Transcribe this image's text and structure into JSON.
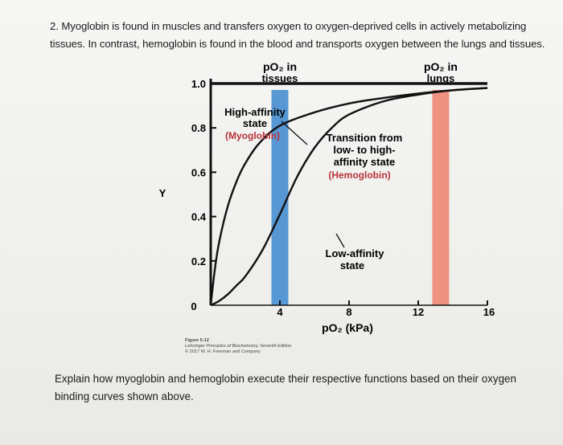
{
  "question": {
    "number": "2.",
    "text": "Myoglobin is found in muscles and transfers oxygen to oxygen-deprived cells in actively metabolizing tissues. In contrast, hemoglobin is found in the blood and transports oxygen between the lungs and tissues.",
    "prompt": "Explain how myoglobin and hemoglobin execute their respective functions based on their oxygen binding curves shown above."
  },
  "figure_credit": {
    "figure": "Figure 5-12",
    "book": "Lehninger Principles of Biochemistry,",
    "edition": "Seventh Edition",
    "copyright": "© 2017 W. H. Freeman and Company"
  },
  "chart_data": {
    "type": "line",
    "xlabel": "pO₂ (kPa)",
    "ylabel": "Y",
    "xlim": [
      0,
      16
    ],
    "ylim": [
      0,
      1.0
    ],
    "x_ticks": [
      4,
      8,
      12,
      16
    ],
    "y_ticks": [
      0.2,
      0.4,
      0.6,
      0.8,
      1.0
    ],
    "origin_label": "0",
    "bands": [
      {
        "label_line1": "pO₂ in",
        "label_line2": "tissues",
        "x_center": 4,
        "color": "#4a8fd0"
      },
      {
        "label_line1": "pO₂ in",
        "label_line2": "lungs",
        "x_center": 13.3,
        "color": "#ef8a78"
      }
    ],
    "series": [
      {
        "name": "Myoglobin",
        "x": [
          0,
          0.25,
          0.5,
          1,
          1.5,
          2,
          2.8,
          4,
          6,
          8,
          10,
          12,
          14,
          16
        ],
        "y": [
          0,
          0.17,
          0.29,
          0.45,
          0.56,
          0.64,
          0.73,
          0.81,
          0.87,
          0.91,
          0.935,
          0.955,
          0.97,
          0.98
        ]
      },
      {
        "name": "Hemoglobin",
        "x": [
          0,
          0.5,
          1,
          1.5,
          2,
          3,
          4,
          5,
          6,
          7,
          8,
          10,
          12,
          14,
          16
        ],
        "y": [
          0,
          0.02,
          0.05,
          0.09,
          0.13,
          0.25,
          0.41,
          0.58,
          0.71,
          0.8,
          0.86,
          0.92,
          0.95,
          0.97,
          0.98
        ]
      }
    ],
    "annotations": {
      "high_affinity": [
        "High-affinity",
        "state",
        "(Myoglobin)"
      ],
      "transition": [
        "Transition from",
        "low- to high-",
        "affinity state",
        "(Hemoglobin)"
      ],
      "low_affinity": [
        "Low-affinity",
        "state"
      ]
    }
  }
}
